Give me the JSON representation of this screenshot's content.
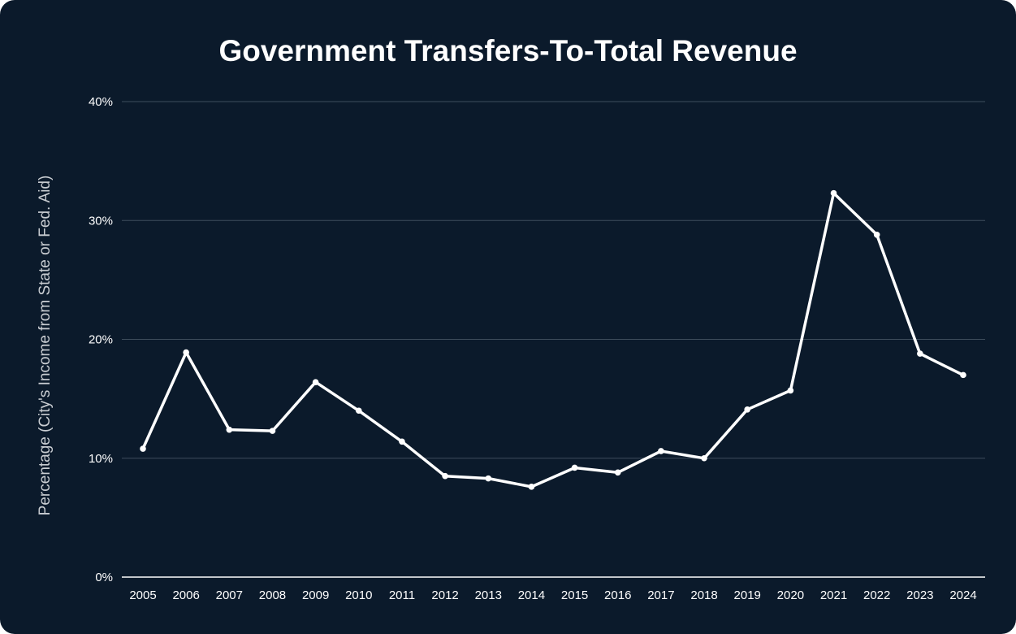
{
  "chart_data": {
    "type": "line",
    "title": "Government Transfers-To-Total Revenue",
    "xlabel": "",
    "ylabel": "Percentage (City's Income from State or Fed. Aid)",
    "x": [
      "2005",
      "2006",
      "2007",
      "2008",
      "2009",
      "2010",
      "2011",
      "2012",
      "2013",
      "2014",
      "2015",
      "2016",
      "2017",
      "2018",
      "2019",
      "2020",
      "2021",
      "2022",
      "2023",
      "2024"
    ],
    "series": [
      {
        "values": [
          10.8,
          18.9,
          12.4,
          12.3,
          16.4,
          14.0,
          11.4,
          8.5,
          8.3,
          7.6,
          9.2,
          8.8,
          10.6,
          10.0,
          14.1,
          15.7,
          32.3,
          28.8,
          18.8,
          17.0
        ]
      }
    ],
    "ylim": [
      0,
      40
    ],
    "yticks": [
      0,
      10,
      20,
      30,
      40
    ],
    "ytick_labels": [
      "0%",
      "10%",
      "20%",
      "30%",
      "40%"
    ],
    "grid": true,
    "legend": "none",
    "colors": {
      "background": "#0b1a2b",
      "line": "#ffffff",
      "grid": "#3e4d5c",
      "text": "#ffffff",
      "axis_label": "#c9cdd2"
    }
  }
}
